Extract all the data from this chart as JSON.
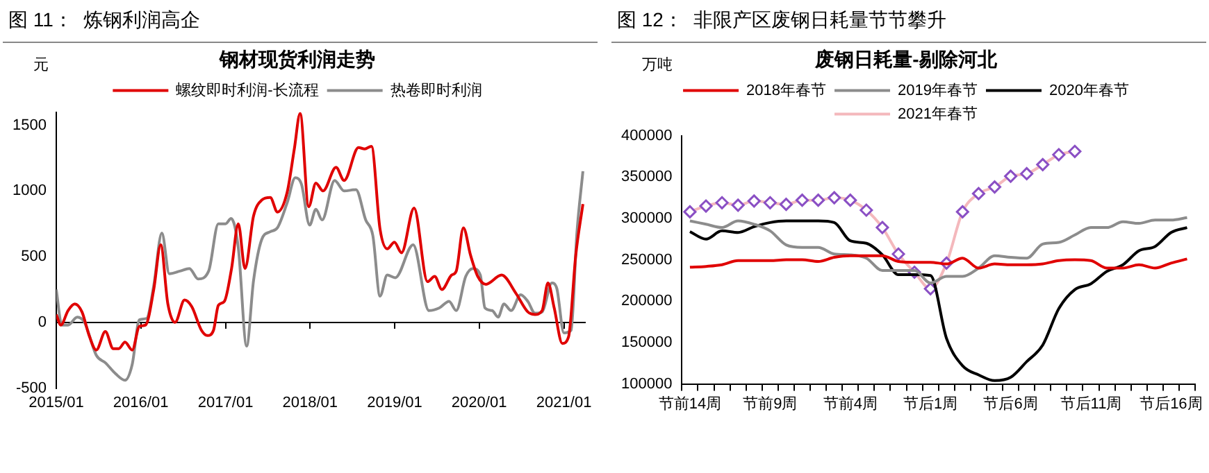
{
  "chart_data": [
    {
      "type": "line",
      "title": "图 11：  炼钢利润高企",
      "subtitle": "钢材现货利润走势",
      "ylabel": "元",
      "legend": "top",
      "grid": false,
      "marker": "none",
      "line_style": "solid",
      "xlim": [
        "2015-01",
        "2021-04"
      ],
      "xticks": [
        {
          "value": "2015-01",
          "label": "2015/01"
        },
        {
          "value": "2016-01",
          "label": "2016/01"
        },
        {
          "value": "2017-01",
          "label": "2017/01"
        },
        {
          "value": "2018-01",
          "label": "2018/01"
        },
        {
          "value": "2019-01",
          "label": "2019/01"
        },
        {
          "value": "2020-01",
          "label": "2020/01"
        },
        {
          "value": "2021-01",
          "label": "2021/01"
        }
      ],
      "ylim": [
        -500,
        1600
      ],
      "yticks": [
        -500,
        0,
        500,
        1000,
        1500
      ],
      "ref_lines": [
        {
          "axis": "y",
          "value": 0
        }
      ],
      "series": [
        {
          "name": "螺纹即时利润-长流程",
          "color": "#e00000",
          "x": [
            "2015-01-01",
            "2015-01-21",
            "2015-02-21",
            "2015-03-22",
            "2015-04-22",
            "2015-05-23",
            "2015-06-23",
            "2015-08-01",
            "2015-09-04",
            "2015-09-28",
            "2015-10-25",
            "2015-11-25",
            "2015-12-26",
            "2016-01-22",
            "2016-02-26",
            "2016-03-27",
            "2016-04-27",
            "2016-05-28",
            "2016-07-08",
            "2016-08-08",
            "2016-09-19",
            "2016-10-15",
            "2016-11-10",
            "2016-12-01",
            "2016-12-27",
            "2017-01-27",
            "2017-02-25",
            "2017-03-26",
            "2017-05-02",
            "2017-06-06",
            "2017-07-13",
            "2017-08-13",
            "2017-09-24",
            "2017-10-25",
            "2017-11-19",
            "2017-12-26",
            "2018-01-26",
            "2018-02-26",
            "2018-04-23",
            "2018-05-28",
            "2018-07-29",
            "2018-08-25",
            "2018-09-23",
            "2018-10-30",
            "2018-11-30",
            "2018-12-31",
            "2019-01-31",
            "2019-03-26",
            "2019-05-23",
            "2019-06-23",
            "2019-07-24",
            "2019-09-04",
            "2019-09-24",
            "2019-10-25",
            "2019-11-25",
            "2019-12-26",
            "2020-01-30",
            "2020-04-07",
            "2020-06-08",
            "2020-07-29",
            "2020-08-29",
            "2020-09-29",
            "2020-10-24",
            "2020-11-20",
            "2020-12-25",
            "2021-01-21",
            "2021-02-21",
            "2021-03-24"
          ],
          "values": [
            60,
            -20,
            90,
            140,
            80,
            -100,
            -210,
            -70,
            -200,
            -200,
            -150,
            -210,
            -30,
            -20,
            250,
            590,
            140,
            0,
            170,
            120,
            -60,
            -100,
            -60,
            130,
            160,
            410,
            750,
            410,
            810,
            930,
            950,
            840,
            990,
            1320,
            1590,
            880,
            1060,
            1000,
            1180,
            1080,
            1330,
            1320,
            1340,
            710,
            560,
            610,
            530,
            870,
            310,
            350,
            250,
            360,
            390,
            720,
            510,
            350,
            290,
            360,
            220,
            80,
            60,
            90,
            300,
            110,
            -160,
            -110,
            510,
            900
          ]
        },
        {
          "name": "热卷即时利润",
          "color": "#8c8c8c",
          "x": [
            "2015-01-01",
            "2015-01-25",
            "2015-02-21",
            "2015-04-02",
            "2015-05-03",
            "2015-06-23",
            "2015-08-03",
            "2015-09-14",
            "2015-10-25",
            "2015-11-25",
            "2015-12-26",
            "2016-01-26",
            "2016-02-26",
            "2016-04-01",
            "2016-05-03",
            "2016-06-18",
            "2016-07-29",
            "2016-09-05",
            "2016-10-20",
            "2016-12-01",
            "2017-01-01",
            "2017-01-25",
            "2017-02-25",
            "2017-04-02",
            "2017-05-02",
            "2017-06-06",
            "2017-07-13",
            "2017-08-13",
            "2017-09-24",
            "2017-10-29",
            "2017-11-25",
            "2017-12-30",
            "2018-01-26",
            "2018-02-22",
            "2018-04-17",
            "2018-05-28",
            "2018-07-18",
            "2018-08-29",
            "2018-09-29",
            "2018-10-30",
            "2018-11-30",
            "2019-01-04",
            "2019-03-22",
            "2019-05-29",
            "2019-07-13",
            "2019-08-24",
            "2019-09-24",
            "2019-11-04",
            "2019-12-05",
            "2020-01-06",
            "2020-01-26",
            "2020-02-26",
            "2020-03-23",
            "2020-04-17",
            "2020-05-18",
            "2020-06-28",
            "2020-07-29",
            "2020-08-29",
            "2020-09-29",
            "2020-11-10",
            "2020-12-01",
            "2021-01-01",
            "2021-02-01",
            "2021-02-26",
            "2021-03-24"
          ],
          "values": [
            250,
            -20,
            -20,
            40,
            0,
            -250,
            -310,
            -390,
            -440,
            -320,
            20,
            30,
            280,
            680,
            370,
            390,
            410,
            330,
            390,
            750,
            750,
            790,
            570,
            -180,
            320,
            630,
            690,
            720,
            910,
            1100,
            1050,
            740,
            860,
            780,
            1080,
            1000,
            1010,
            780,
            660,
            200,
            360,
            340,
            590,
            90,
            110,
            160,
            90,
            350,
            410,
            360,
            110,
            90,
            40,
            140,
            90,
            210,
            160,
            70,
            80,
            300,
            260,
            -80,
            -60,
            680,
            1150
          ]
        }
      ]
    },
    {
      "type": "line",
      "title": "图 12：  非限产区废钢日耗量节节攀升",
      "subtitle": "废钢日耗量-剔除河北",
      "ylabel": "万吨",
      "legend": "top",
      "grid": false,
      "line_style": "solid",
      "categories": [
        "节前14周",
        null,
        null,
        null,
        null,
        "节前9周",
        null,
        null,
        null,
        null,
        "节前4周",
        null,
        null,
        null,
        null,
        "节后1周",
        null,
        null,
        null,
        null,
        "节后6周",
        null,
        null,
        null,
        null,
        "节后11周",
        null,
        null,
        null,
        null,
        "节后16周",
        null
      ],
      "ylim": [
        100000,
        400000
      ],
      "yticks": [
        100000,
        150000,
        200000,
        250000,
        300000,
        350000,
        400000
      ],
      "series": [
        {
          "name": "2018年春节",
          "color": "#e00000",
          "marker": "none",
          "values": [
            241000,
            242000,
            244000,
            249000,
            249000,
            249000,
            250000,
            250000,
            248000,
            253000,
            255000,
            255000,
            255000,
            248000,
            247000,
            247000,
            245000,
            252000,
            240000,
            245000,
            244000,
            244000,
            245000,
            249000,
            250000,
            249000,
            240000,
            240000,
            244000,
            240000,
            246000,
            251000
          ]
        },
        {
          "name": "2019年春节",
          "color": "#8c8c8c",
          "marker": "none",
          "values": [
            297000,
            293000,
            289000,
            297000,
            293000,
            285000,
            268000,
            265000,
            265000,
            257000,
            256000,
            252000,
            237000,
            237000,
            237000,
            222000,
            230000,
            230000,
            240000,
            255000,
            253000,
            252000,
            269000,
            271000,
            280000,
            289000,
            289000,
            296000,
            294000,
            298000,
            298000,
            301000
          ]
        },
        {
          "name": "2020年春节",
          "color": "#000000",
          "marker": "none",
          "values": [
            284000,
            275000,
            285000,
            283000,
            290000,
            295000,
            297000,
            297000,
            297000,
            295000,
            273000,
            270000,
            256000,
            232000,
            232000,
            231000,
            155000,
            122000,
            111000,
            104000,
            108000,
            127000,
            147000,
            191000,
            214000,
            221000,
            236000,
            244000,
            261000,
            266000,
            283000,
            289000
          ]
        },
        {
          "name": "2021年春节",
          "color": "#f4b8bc",
          "marker": "diamond",
          "values": [
            308000,
            315000,
            319000,
            316000,
            321000,
            319000,
            317000,
            322000,
            322000,
            325000,
            322000,
            310000,
            289000,
            257000,
            235000,
            215000,
            246000,
            308000,
            330000,
            338000,
            351000,
            354000,
            365000,
            377000,
            381000,
            null,
            null,
            null,
            null,
            null,
            null,
            null
          ]
        }
      ]
    }
  ]
}
